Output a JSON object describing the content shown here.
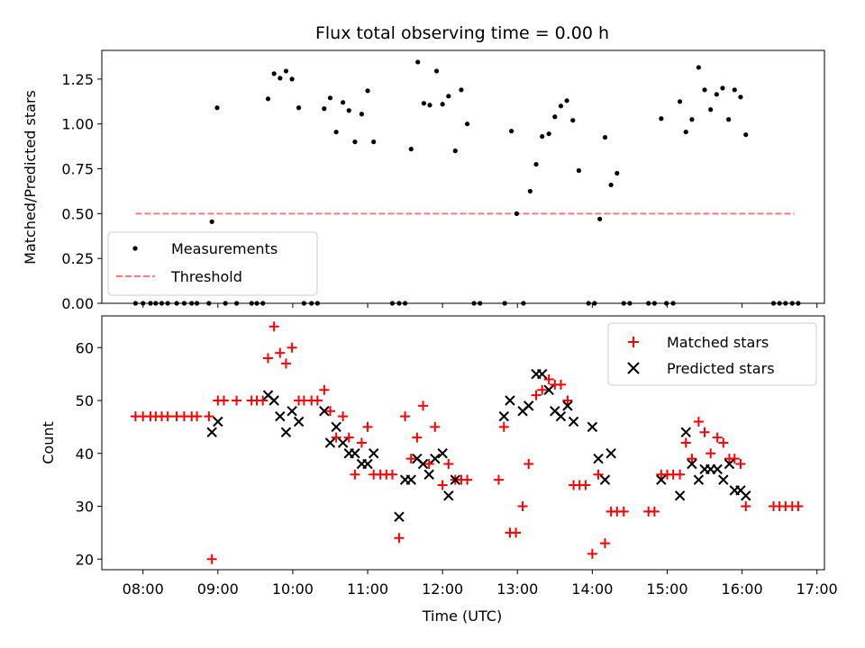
{
  "chart_data": [
    {
      "type": "scatter",
      "title": "Flux total observing time = 0.00 h",
      "xlabel": "",
      "ylabel": "Matched/Predicted stars",
      "xlim": [
        7.45,
        17.1
      ],
      "ylim": [
        0,
        1.41
      ],
      "yticks": [
        0,
        0.25,
        0.5,
        0.75,
        1.0,
        1.25
      ],
      "ytick_labels": [
        "0.00",
        "0.25",
        "0.50",
        "0.75",
        "1.00",
        "1.25"
      ],
      "legend_position": "lower-left",
      "series": [
        {
          "name": "Measurements",
          "marker": "dot",
          "color": "#000000",
          "points": [
            [
              7.9,
              0
            ],
            [
              8.0,
              0
            ],
            [
              8.1,
              0
            ],
            [
              8.17,
              0
            ],
            [
              8.25,
              0
            ],
            [
              8.33,
              0
            ],
            [
              8.45,
              0
            ],
            [
              8.55,
              0
            ],
            [
              8.65,
              0
            ],
            [
              8.72,
              0
            ],
            [
              8.88,
              0
            ],
            [
              8.92,
              0.455
            ],
            [
              8.99,
              1.09
            ],
            [
              9.1,
              0
            ],
            [
              9.25,
              0
            ],
            [
              9.45,
              0
            ],
            [
              9.52,
              0
            ],
            [
              9.6,
              0
            ],
            [
              9.67,
              1.14
            ],
            [
              9.75,
              1.28
            ],
            [
              9.83,
              1.255
            ],
            [
              9.91,
              1.295
            ],
            [
              9.99,
              1.25
            ],
            [
              10.08,
              1.09
            ],
            [
              10.15,
              0
            ],
            [
              10.25,
              0
            ],
            [
              10.33,
              0
            ],
            [
              10.42,
              1.085
            ],
            [
              10.5,
              1.145
            ],
            [
              10.58,
              0.955
            ],
            [
              10.67,
              1.12
            ],
            [
              10.75,
              1.075
            ],
            [
              10.83,
              0.9
            ],
            [
              10.92,
              1.055
            ],
            [
              11.0,
              1.185
            ],
            [
              11.08,
              0.9
            ],
            [
              11.33,
              0
            ],
            [
              11.42,
              0
            ],
            [
              11.5,
              0
            ],
            [
              11.58,
              0.86
            ],
            [
              11.67,
              1.345
            ],
            [
              11.75,
              1.115
            ],
            [
              11.83,
              1.105
            ],
            [
              11.92,
              1.295
            ],
            [
              12.0,
              1.11
            ],
            [
              12.08,
              1.155
            ],
            [
              12.17,
              0.85
            ],
            [
              12.25,
              1.19
            ],
            [
              12.33,
              1.0
            ],
            [
              12.42,
              0
            ],
            [
              12.5,
              0
            ],
            [
              12.83,
              0
            ],
            [
              12.92,
              0.96
            ],
            [
              12.99,
              0.5
            ],
            [
              13.08,
              0
            ],
            [
              13.17,
              0.625
            ],
            [
              13.25,
              0.775
            ],
            [
              13.33,
              0.93
            ],
            [
              13.42,
              0.945
            ],
            [
              13.5,
              1.04
            ],
            [
              13.58,
              1.1
            ],
            [
              13.66,
              1.13
            ],
            [
              13.74,
              1.02
            ],
            [
              13.82,
              0.74
            ],
            [
              13.95,
              0
            ],
            [
              14.03,
              0
            ],
            [
              14.1,
              0.47
            ],
            [
              14.17,
              0.925
            ],
            [
              14.25,
              0.66
            ],
            [
              14.33,
              0.725
            ],
            [
              14.42,
              0
            ],
            [
              14.5,
              0
            ],
            [
              14.75,
              0
            ],
            [
              14.83,
              0
            ],
            [
              14.92,
              1.03
            ],
            [
              14.99,
              0
            ],
            [
              15.08,
              0
            ],
            [
              15.17,
              1.125
            ],
            [
              15.25,
              0.955
            ],
            [
              15.33,
              1.025
            ],
            [
              15.42,
              1.315
            ],
            [
              15.5,
              1.19
            ],
            [
              15.58,
              1.08
            ],
            [
              15.66,
              1.165
            ],
            [
              15.74,
              1.2
            ],
            [
              15.82,
              1.025
            ],
            [
              15.9,
              1.19
            ],
            [
              15.98,
              1.15
            ],
            [
              16.05,
              0.94
            ],
            [
              16.42,
              0
            ],
            [
              16.5,
              0
            ],
            [
              16.58,
              0
            ],
            [
              16.67,
              0
            ],
            [
              16.75,
              0
            ]
          ]
        },
        {
          "name": "Threshold",
          "line_style": "dashed",
          "color": "#ff7a7a",
          "x": [
            7.9,
            16.7
          ],
          "y": [
            0.5,
            0.5
          ]
        }
      ]
    },
    {
      "type": "scatter",
      "title": "",
      "xlabel": "Time (UTC)",
      "ylabel": "Count",
      "xlim": [
        7.45,
        17.1
      ],
      "ylim": [
        18,
        66
      ],
      "xticks": [
        8,
        9,
        10,
        11,
        12,
        13,
        14,
        15,
        16,
        17
      ],
      "xtick_labels": [
        "08:00",
        "09:00",
        "10:00",
        "11:00",
        "12:00",
        "13:00",
        "14:00",
        "15:00",
        "16:00",
        "17:00"
      ],
      "yticks": [
        20,
        30,
        40,
        50,
        60
      ],
      "ytick_labels": [
        "20",
        "30",
        "40",
        "50",
        "60"
      ],
      "legend_position": "top-right",
      "series": [
        {
          "name": "Matched stars",
          "marker": "plus",
          "color": "#ff0000",
          "points": [
            [
              7.9,
              47
            ],
            [
              8.0,
              47
            ],
            [
              8.1,
              47
            ],
            [
              8.17,
              47
            ],
            [
              8.25,
              47
            ],
            [
              8.33,
              47
            ],
            [
              8.45,
              47
            ],
            [
              8.55,
              47
            ],
            [
              8.65,
              47
            ],
            [
              8.72,
              47
            ],
            [
              8.88,
              47
            ],
            [
              8.92,
              20
            ],
            [
              9.0,
              50
            ],
            [
              9.08,
              50
            ],
            [
              9.25,
              50
            ],
            [
              9.45,
              50
            ],
            [
              9.52,
              50
            ],
            [
              9.6,
              50
            ],
            [
              9.67,
              58
            ],
            [
              9.75,
              64
            ],
            [
              9.83,
              59
            ],
            [
              9.91,
              57
            ],
            [
              9.99,
              60
            ],
            [
              10.08,
              50
            ],
            [
              10.15,
              50
            ],
            [
              10.25,
              50
            ],
            [
              10.33,
              50
            ],
            [
              10.42,
              52
            ],
            [
              10.5,
              48
            ],
            [
              10.58,
              43
            ],
            [
              10.67,
              47
            ],
            [
              10.75,
              43
            ],
            [
              10.83,
              36
            ],
            [
              10.92,
              42
            ],
            [
              11.0,
              45
            ],
            [
              11.08,
              36
            ],
            [
              11.17,
              36
            ],
            [
              11.25,
              36
            ],
            [
              11.33,
              36
            ],
            [
              11.42,
              24
            ],
            [
              11.5,
              47
            ],
            [
              11.58,
              39
            ],
            [
              11.66,
              43
            ],
            [
              11.74,
              49
            ],
            [
              11.82,
              38
            ],
            [
              11.9,
              45
            ],
            [
              12.0,
              34
            ],
            [
              12.08,
              38
            ],
            [
              12.17,
              35
            ],
            [
              12.25,
              35
            ],
            [
              12.33,
              35
            ],
            [
              12.75,
              35
            ],
            [
              12.82,
              45
            ],
            [
              12.9,
              25
            ],
            [
              12.98,
              25
            ],
            [
              13.07,
              30
            ],
            [
              13.15,
              38
            ],
            [
              13.25,
              51
            ],
            [
              13.33,
              52
            ],
            [
              13.42,
              54
            ],
            [
              13.5,
              53
            ],
            [
              13.58,
              53
            ],
            [
              13.67,
              50
            ],
            [
              13.75,
              34
            ],
            [
              13.83,
              34
            ],
            [
              13.91,
              34
            ],
            [
              14.0,
              21
            ],
            [
              14.08,
              36
            ],
            [
              14.17,
              23
            ],
            [
              14.25,
              29
            ],
            [
              14.33,
              29
            ],
            [
              14.42,
              29
            ],
            [
              14.75,
              29
            ],
            [
              14.83,
              29
            ],
            [
              14.92,
              36
            ],
            [
              15.0,
              36
            ],
            [
              15.08,
              36
            ],
            [
              15.17,
              36
            ],
            [
              15.25,
              42
            ],
            [
              15.33,
              39
            ],
            [
              15.42,
              46
            ],
            [
              15.5,
              44
            ],
            [
              15.58,
              40
            ],
            [
              15.67,
              43
            ],
            [
              15.75,
              42
            ],
            [
              15.83,
              39
            ],
            [
              15.9,
              39
            ],
            [
              15.98,
              38
            ],
            [
              16.05,
              30
            ],
            [
              16.42,
              30
            ],
            [
              16.5,
              30
            ],
            [
              16.58,
              30
            ],
            [
              16.67,
              30
            ],
            [
              16.75,
              30
            ]
          ]
        },
        {
          "name": "Predicted stars",
          "marker": "x",
          "color": "#000000",
          "points": [
            [
              8.92,
              44
            ],
            [
              9.0,
              46
            ],
            [
              9.67,
              51
            ],
            [
              9.75,
              50
            ],
            [
              9.83,
              47
            ],
            [
              9.91,
              44
            ],
            [
              9.99,
              48
            ],
            [
              10.08,
              46
            ],
            [
              10.42,
              48
            ],
            [
              10.5,
              42
            ],
            [
              10.58,
              45
            ],
            [
              10.67,
              42
            ],
            [
              10.75,
              40
            ],
            [
              10.83,
              40
            ],
            [
              10.92,
              38
            ],
            [
              11.0,
              38
            ],
            [
              11.08,
              40
            ],
            [
              11.42,
              28
            ],
            [
              11.5,
              35
            ],
            [
              11.58,
              35
            ],
            [
              11.66,
              39
            ],
            [
              11.74,
              38
            ],
            [
              11.82,
              36
            ],
            [
              11.9,
              39
            ],
            [
              12.0,
              40
            ],
            [
              12.08,
              32
            ],
            [
              12.17,
              35
            ],
            [
              12.82,
              47
            ],
            [
              12.9,
              50
            ],
            [
              13.07,
              48
            ],
            [
              13.15,
              49
            ],
            [
              13.25,
              55
            ],
            [
              13.33,
              55
            ],
            [
              13.42,
              52
            ],
            [
              13.5,
              48
            ],
            [
              13.58,
              47
            ],
            [
              13.67,
              49
            ],
            [
              13.75,
              46
            ],
            [
              14.0,
              45
            ],
            [
              14.08,
              39
            ],
            [
              14.17,
              35
            ],
            [
              14.25,
              40
            ],
            [
              14.92,
              35
            ],
            [
              15.17,
              32
            ],
            [
              15.25,
              44
            ],
            [
              15.33,
              38
            ],
            [
              15.42,
              35
            ],
            [
              15.5,
              37
            ],
            [
              15.58,
              37
            ],
            [
              15.67,
              37
            ],
            [
              15.75,
              35
            ],
            [
              15.83,
              38
            ],
            [
              15.9,
              33
            ],
            [
              15.98,
              33
            ],
            [
              16.05,
              32
            ]
          ]
        }
      ]
    }
  ]
}
